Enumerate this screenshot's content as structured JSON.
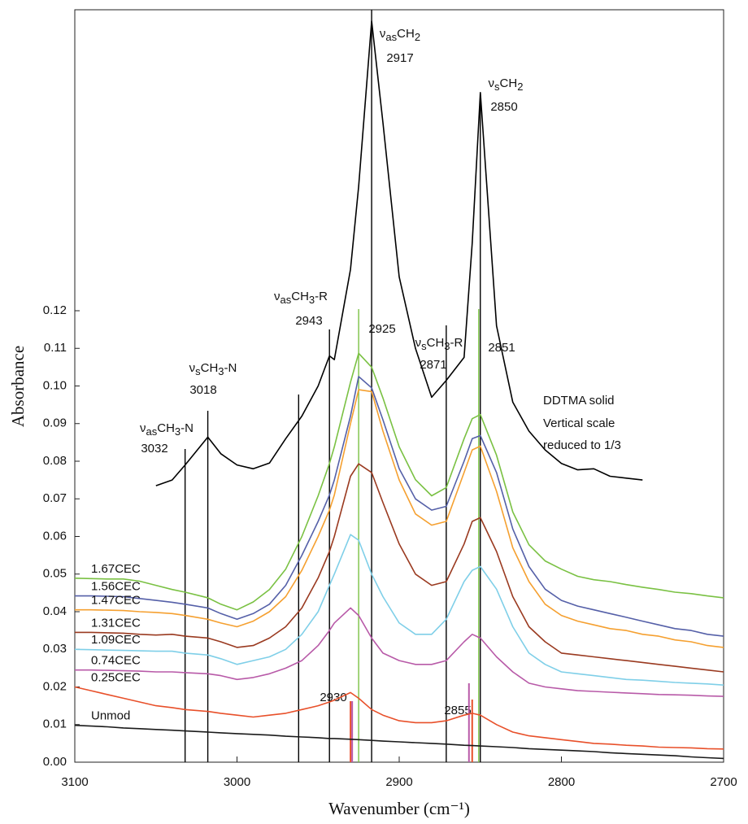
{
  "chart_data": {
    "type": "line",
    "xlabel": "Wavenumber (cm⁻¹)",
    "ylabel": "Absorbance",
    "xlim": [
      3100,
      2700
    ],
    "xticks": [
      3100,
      3000,
      2900,
      2800,
      2700
    ],
    "ylim": [
      0,
      0.2
    ],
    "yticks": [
      {
        "value": 0,
        "label": "0.00"
      },
      0.01,
      0.02,
      0.03,
      0.04,
      0.05,
      0.06,
      0.07,
      0.08,
      0.09,
      {
        "value": 0.1,
        "label": "0.10"
      },
      0.11,
      0.12
    ],
    "x": [
      3100,
      3090,
      3080,
      3070,
      3060,
      3050,
      3040,
      3032,
      3018,
      3010,
      3000,
      2990,
      2980,
      2970,
      2960,
      2950,
      2943,
      2940,
      2930,
      2925,
      2917,
      2910,
      2900,
      2890,
      2880,
      2871,
      2860,
      2855,
      2850,
      2840,
      2830,
      2820,
      2810,
      2800,
      2790,
      2780,
      2770,
      2760,
      2750,
      2740,
      2730,
      2720,
      2710,
      2700
    ],
    "series": [
      {
        "name": "DDTMA solid",
        "color": "#000000",
        "values": [
          null,
          null,
          null,
          null,
          null,
          0.0735,
          0.075,
          0.079,
          0.0864,
          0.082,
          0.079,
          0.078,
          0.0795,
          0.086,
          0.092,
          0.1,
          0.108,
          0.107,
          0.131,
          0.153,
          0.197,
          0.17,
          0.129,
          0.11,
          0.097,
          0.1015,
          0.1076,
          0.138,
          0.178,
          0.116,
          0.0957,
          0.088,
          0.083,
          0.0794,
          0.0777,
          0.078,
          0.076,
          0.0755,
          0.075,
          null,
          null,
          null,
          null,
          null
        ]
      },
      {
        "name": "1.67CEC",
        "color": "#7ac143",
        "values": [
          0.0489,
          0.0488,
          0.0487,
          0.0487,
          0.0481,
          0.047,
          0.0459,
          0.0452,
          0.0437,
          0.042,
          0.0405,
          0.0426,
          0.0459,
          0.0513,
          0.06,
          0.0708,
          0.0794,
          0.0838,
          0.101,
          0.1087,
          0.105,
          0.0968,
          0.0838,
          0.0751,
          0.0708,
          0.073,
          0.086,
          0.0913,
          0.0924,
          0.0816,
          0.0665,
          0.0578,
          0.0535,
          0.0513,
          0.0494,
          0.0485,
          0.048,
          0.0472,
          0.0465,
          0.0459,
          0.0452,
          0.0448,
          0.0442,
          0.0437
        ]
      },
      {
        "name": "1.56CEC",
        "color": "#5560a8",
        "values": [
          0.0442,
          0.0442,
          0.0441,
          0.044,
          0.0435,
          0.043,
          0.0425,
          0.042,
          0.041,
          0.0395,
          0.038,
          0.0395,
          0.042,
          0.047,
          0.055,
          0.064,
          0.071,
          0.075,
          0.092,
          0.1025,
          0.0995,
          0.091,
          0.078,
          0.07,
          0.067,
          0.068,
          0.08,
          0.086,
          0.0868,
          0.077,
          0.062,
          0.052,
          0.046,
          0.043,
          0.0415,
          0.0405,
          0.0395,
          0.0385,
          0.0375,
          0.0365,
          0.0355,
          0.035,
          0.034,
          0.0335
        ]
      },
      {
        "name": "1.47CEC",
        "color": "#f5a030",
        "values": [
          0.0405,
          0.0405,
          0.0404,
          0.0403,
          0.04,
          0.0398,
          0.0395,
          0.039,
          0.038,
          0.037,
          0.036,
          0.0375,
          0.04,
          0.044,
          0.051,
          0.06,
          0.067,
          0.071,
          0.09,
          0.099,
          0.0985,
          0.088,
          0.075,
          0.066,
          0.063,
          0.064,
          0.077,
          0.083,
          0.084,
          0.072,
          0.057,
          0.048,
          0.042,
          0.039,
          0.0375,
          0.0365,
          0.0355,
          0.035,
          0.034,
          0.0335,
          0.0325,
          0.032,
          0.031,
          0.0305
        ]
      },
      {
        "name": "1.31CEC",
        "color": "#9a3a20",
        "values": [
          0.0345,
          0.0345,
          0.0344,
          0.0343,
          0.034,
          0.0338,
          0.034,
          0.0335,
          0.033,
          0.032,
          0.0305,
          0.031,
          0.033,
          0.036,
          0.041,
          0.049,
          0.056,
          0.06,
          0.076,
          0.0793,
          0.077,
          0.069,
          0.058,
          0.05,
          0.047,
          0.048,
          0.058,
          0.064,
          0.065,
          0.056,
          0.044,
          0.036,
          0.032,
          0.029,
          0.0285,
          0.028,
          0.0275,
          0.027,
          0.0265,
          0.026,
          0.0255,
          0.025,
          0.0245,
          0.024
        ]
      },
      {
        "name": "1.09CEC",
        "color": "#7fcfe8",
        "values": [
          0.03,
          0.0299,
          0.0298,
          0.0297,
          0.0296,
          0.0295,
          0.0295,
          0.029,
          0.0285,
          0.0275,
          0.026,
          0.027,
          0.028,
          0.03,
          0.034,
          0.04,
          0.047,
          0.05,
          0.0605,
          0.059,
          0.05,
          0.044,
          0.037,
          0.034,
          0.034,
          0.038,
          0.048,
          0.051,
          0.052,
          0.046,
          0.036,
          0.029,
          0.026,
          0.024,
          0.0235,
          0.023,
          0.0225,
          0.022,
          0.0218,
          0.0215,
          0.0212,
          0.021,
          0.0208,
          0.0205
        ]
      },
      {
        "name": "0.74CEC",
        "color": "#b85aa8",
        "values": [
          0.0245,
          0.0245,
          0.0244,
          0.0243,
          0.0242,
          0.024,
          0.024,
          0.0238,
          0.0235,
          0.023,
          0.022,
          0.0225,
          0.0235,
          0.025,
          0.027,
          0.031,
          0.035,
          0.037,
          0.041,
          0.039,
          0.033,
          0.029,
          0.027,
          0.026,
          0.026,
          0.027,
          0.032,
          0.034,
          0.033,
          0.028,
          0.024,
          0.021,
          0.02,
          0.0195,
          0.019,
          0.0188,
          0.0186,
          0.0184,
          0.0182,
          0.018,
          0.0179,
          0.0178,
          0.0176,
          0.0175
        ]
      },
      {
        "name": "0.25CEC",
        "color": "#e8502a",
        "values": [
          0.02,
          0.019,
          0.018,
          0.017,
          0.016,
          0.015,
          0.0145,
          0.014,
          0.0135,
          0.013,
          0.0125,
          0.012,
          0.0125,
          0.013,
          0.014,
          0.015,
          0.016,
          0.0165,
          0.0185,
          0.017,
          0.014,
          0.0125,
          0.011,
          0.0105,
          0.0105,
          0.011,
          0.0125,
          0.013,
          0.0125,
          0.01,
          0.008,
          0.007,
          0.0065,
          0.006,
          0.0055,
          0.005,
          0.0048,
          0.0045,
          0.0043,
          0.004,
          0.0039,
          0.0038,
          0.0036,
          0.0035
        ]
      },
      {
        "name": "Unmod",
        "color": "#1a1a1a",
        "values": [
          0.0098,
          0.0096,
          0.0094,
          0.0091,
          0.0089,
          0.0087,
          0.0085,
          0.0083,
          0.008,
          0.0078,
          0.0076,
          0.0074,
          0.0072,
          0.0069,
          0.0067,
          0.0065,
          0.0063,
          0.0063,
          0.0061,
          0.006,
          0.0058,
          0.0056,
          0.0054,
          0.0052,
          0.005,
          0.0048,
          0.0045,
          0.0044,
          0.0043,
          0.0041,
          0.0039,
          0.0036,
          0.0034,
          0.0032,
          0.003,
          0.0028,
          0.0025,
          0.0023,
          0.0021,
          0.0019,
          0.0017,
          0.0014,
          0.0012,
          0.001
        ]
      }
    ],
    "note": [
      "Vertical scale",
      "reduced to 1/3"
    ],
    "annotations": [
      {
        "x": 3032,
        "show_value": true,
        "name": [
          "ν",
          "as",
          "CH",
          "3",
          "-N"
        ],
        "color": "#000000"
      },
      {
        "x": 3018,
        "show_value": true,
        "name": [
          "ν",
          "s",
          "CH",
          "3",
          "-N"
        ],
        "color": "#000000"
      },
      {
        "x": 2962,
        "color": "#000000"
      },
      {
        "x": 2943,
        "show_value": true,
        "name": [
          "ν",
          "as",
          "CH",
          "3",
          "-R"
        ],
        "color": "#000000"
      },
      {
        "x": 2917,
        "show_value": true,
        "name": [
          "ν",
          "as",
          "CH",
          "2"
        ],
        "color": "#000000"
      },
      {
        "x": 2871,
        "show_value": true,
        "name": [
          "ν",
          "s",
          "CH",
          "3",
          "-R"
        ],
        "color": "#000000"
      },
      {
        "x": 2850,
        "show_value": true,
        "name": [
          "ν",
          "s",
          "CH",
          "2"
        ],
        "color": "#000000"
      },
      {
        "x": 2925,
        "show_value": true,
        "color": "#7ac143"
      },
      {
        "x": 2851,
        "show_value": true,
        "color": "#7ac143"
      },
      {
        "x": 2930,
        "show_value": true,
        "color": "#e8502a"
      },
      {
        "x": 2929,
        "color": "#b85aa8"
      },
      {
        "x": 2855,
        "show_value": true,
        "color": "#e8502a"
      },
      {
        "x": 2857,
        "color": "#b85aa8"
      }
    ]
  }
}
